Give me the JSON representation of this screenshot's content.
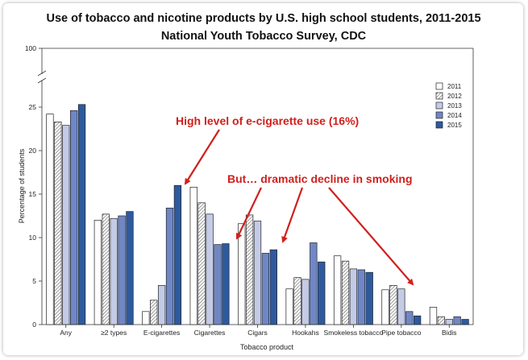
{
  "chart_data": {
    "type": "bar",
    "title": "Use of tobacco and nicotine products by U.S. high school students, 2011-2015",
    "subtitle": "National Youth Tobacco Survey, CDC",
    "xlabel": "Tobacco product",
    "ylabel": "Percentage of students",
    "ylim": [
      0,
      100
    ],
    "axis_break": true,
    "yticks": [
      0,
      5,
      10,
      15,
      20,
      25,
      100
    ],
    "legend_position": "top-right",
    "categories": [
      "Any",
      "≥2 types",
      "E-cigarettes",
      "Cigarettes",
      "Cigars",
      "Hookahs",
      "Smokeless tobacco",
      "Pipe tobacco",
      "Bidis"
    ],
    "series": [
      {
        "name": "2011",
        "color": "#ffffff",
        "pattern": "none",
        "values": [
          24.2,
          12.0,
          1.5,
          15.8,
          11.6,
          4.1,
          7.9,
          4.0,
          2.0
        ]
      },
      {
        "name": "2012",
        "color": "#d9d9d9",
        "pattern": "hatch",
        "values": [
          23.3,
          12.7,
          2.8,
          14.0,
          12.6,
          5.4,
          7.3,
          4.5,
          0.9
        ]
      },
      {
        "name": "2013",
        "color": "#c3cbe6",
        "pattern": "none",
        "values": [
          22.9,
          12.2,
          4.5,
          12.7,
          11.9,
          5.2,
          6.4,
          4.1,
          0.6
        ]
      },
      {
        "name": "2014",
        "color": "#6f87c6",
        "pattern": "none",
        "values": [
          24.6,
          12.5,
          13.4,
          9.2,
          8.2,
          9.4,
          6.3,
          1.5,
          0.9
        ]
      },
      {
        "name": "2015",
        "color": "#2d5a9e",
        "pattern": "none",
        "values": [
          25.3,
          13.0,
          16.0,
          9.3,
          8.6,
          7.2,
          6.0,
          1.0,
          0.6
        ]
      }
    ],
    "annotations": [
      {
        "text": "High level of e-cigarette use (16%)",
        "color": "#d0201c"
      },
      {
        "text": "But… dramatic decline in smoking",
        "color": "#d0201c"
      }
    ]
  }
}
